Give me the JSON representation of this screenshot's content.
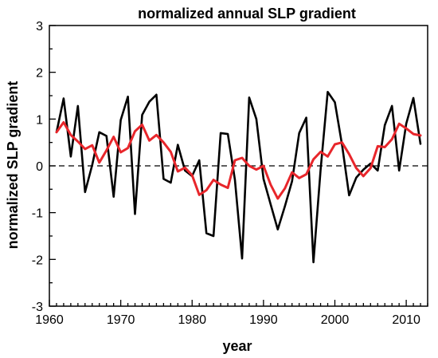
{
  "chart_data": {
    "type": "line",
    "title": "normalized annual SLP gradient",
    "xlabel": "year",
    "ylabel": "normalized SLP gradient",
    "xlim": [
      1960,
      2013
    ],
    "ylim": [
      -3,
      3
    ],
    "xticks": [
      1960,
      1970,
      1980,
      1990,
      2000,
      2010
    ],
    "yticks": [
      -3,
      -2,
      -1,
      0,
      1,
      2,
      3
    ],
    "zero_line": "dashed",
    "grid": false,
    "legend": "none",
    "series": [
      {
        "color": "#000000",
        "style": "solid",
        "x": [
          1961,
          1962,
          1963,
          1964,
          1965,
          1966,
          1967,
          1968,
          1969,
          1970,
          1971,
          1972,
          1973,
          1974,
          1975,
          1976,
          1977,
          1978,
          1979,
          1980,
          1981,
          1982,
          1983,
          1984,
          1985,
          1986,
          1987,
          1988,
          1989,
          1990,
          1991,
          1992,
          1993,
          1994,
          1995,
          1996,
          1997,
          1998,
          1999,
          2000,
          2001,
          2002,
          2003,
          2004,
          2005,
          2006,
          2007,
          2008,
          2009,
          2010,
          2011,
          2012
        ],
        "values": [
          0.72,
          1.44,
          0.2,
          1.28,
          -0.56,
          0.02,
          0.72,
          0.64,
          -0.66,
          0.98,
          1.48,
          -1.03,
          1.09,
          1.37,
          1.52,
          -0.28,
          -0.36,
          0.45,
          -0.1,
          -0.22,
          0.12,
          -1.44,
          -1.5,
          0.7,
          0.68,
          -0.3,
          -1.98,
          1.46,
          1.0,
          -0.28,
          -0.82,
          -1.36,
          -0.86,
          -0.33,
          0.7,
          1.03,
          -2.06,
          -0.08,
          1.58,
          1.36,
          0.45,
          -0.63,
          -0.25,
          -0.08,
          0.05,
          -0.1,
          0.87,
          1.28,
          -0.1,
          0.9,
          1.45,
          0.47
        ]
      },
      {
        "color": "#e8262b",
        "style": "solid",
        "x": [
          1961,
          1962,
          1963,
          1964,
          1965,
          1966,
          1967,
          1968,
          1969,
          1970,
          1971,
          1972,
          1973,
          1974,
          1975,
          1976,
          1977,
          1978,
          1979,
          1980,
          1981,
          1982,
          1983,
          1984,
          1985,
          1986,
          1987,
          1988,
          1989,
          1990,
          1991,
          1992,
          1993,
          1994,
          1995,
          1996,
          1997,
          1998,
          1999,
          2000,
          2001,
          2002,
          2003,
          2004,
          2005,
          2006,
          2007,
          2008,
          2009,
          2010,
          2011,
          2012
        ],
        "values": [
          0.72,
          0.93,
          0.66,
          0.52,
          0.36,
          0.44,
          0.07,
          0.33,
          0.62,
          0.29,
          0.38,
          0.74,
          0.88,
          0.54,
          0.66,
          0.5,
          0.3,
          -0.12,
          -0.04,
          -0.2,
          -0.62,
          -0.52,
          -0.3,
          -0.4,
          -0.47,
          0.12,
          0.17,
          0.0,
          -0.08,
          0.0,
          -0.4,
          -0.7,
          -0.48,
          -0.14,
          -0.26,
          -0.18,
          0.14,
          0.3,
          0.2,
          0.46,
          0.5,
          0.25,
          -0.05,
          -0.22,
          -0.05,
          0.42,
          0.4,
          0.57,
          0.9,
          0.8,
          0.68,
          0.65
        ]
      }
    ]
  }
}
